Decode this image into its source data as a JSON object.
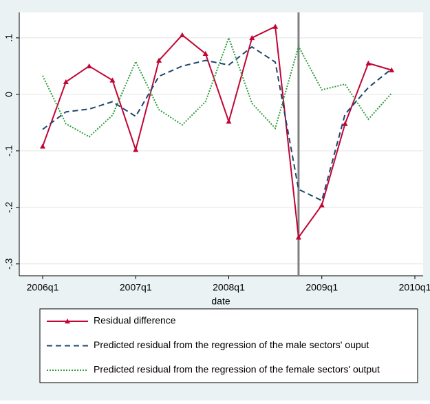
{
  "chart_data": {
    "type": "line",
    "x_label": "date",
    "x": [
      "2006q1",
      "2006q2",
      "2006q3",
      "2006q4",
      "2007q1",
      "2007q2",
      "2007q3",
      "2007q4",
      "2008q1",
      "2008q2",
      "2008q3",
      "2008q4",
      "2009q1",
      "2009q2",
      "2009q3",
      "2009q4"
    ],
    "series": [
      {
        "name": "Residual difference",
        "color": "#c10534",
        "style": "solid",
        "marker": "triangle",
        "values": [
          -0.092,
          0.022,
          0.05,
          0.025,
          -0.098,
          0.06,
          0.105,
          0.072,
          -0.048,
          0.1,
          0.12,
          -0.253,
          -0.196,
          -0.052,
          0.055,
          0.043
        ]
      },
      {
        "name": "Predicted residual from the regression of the male sectors' ouput",
        "color": "#1a476f",
        "style": "dashed",
        "values": [
          -0.062,
          -0.031,
          -0.026,
          -0.013,
          -0.039,
          0.032,
          0.05,
          0.06,
          0.052,
          0.084,
          0.057,
          -0.168,
          -0.188,
          -0.035,
          0.012,
          0.045
        ]
      },
      {
        "name": "Predicted residual from the regression of the female sectors' output",
        "color": "#2d9c3b",
        "style": "dotted",
        "values": [
          0.033,
          -0.052,
          -0.075,
          -0.037,
          0.058,
          -0.027,
          -0.054,
          -0.013,
          0.1,
          -0.016,
          -0.06,
          0.085,
          0.008,
          0.018,
          -0.044,
          0.002
        ]
      }
    ],
    "xlim": [
      "2006q1",
      "2010q1"
    ],
    "xticks": [
      "2006q1",
      "2007q1",
      "2008q1",
      "2009q1",
      "2010q1"
    ],
    "ylim": [
      -0.321,
      0.145
    ],
    "yticks": [
      {
        "value": 0.1,
        "label": ".1"
      },
      0,
      {
        "value": -0.1,
        "label": "-.1"
      },
      {
        "value": -0.2,
        "label": "-.2"
      },
      {
        "value": -0.3,
        "label": "-.3"
      }
    ],
    "vline": {
      "x": "2008q4",
      "color": "#808080"
    },
    "grid": true
  }
}
